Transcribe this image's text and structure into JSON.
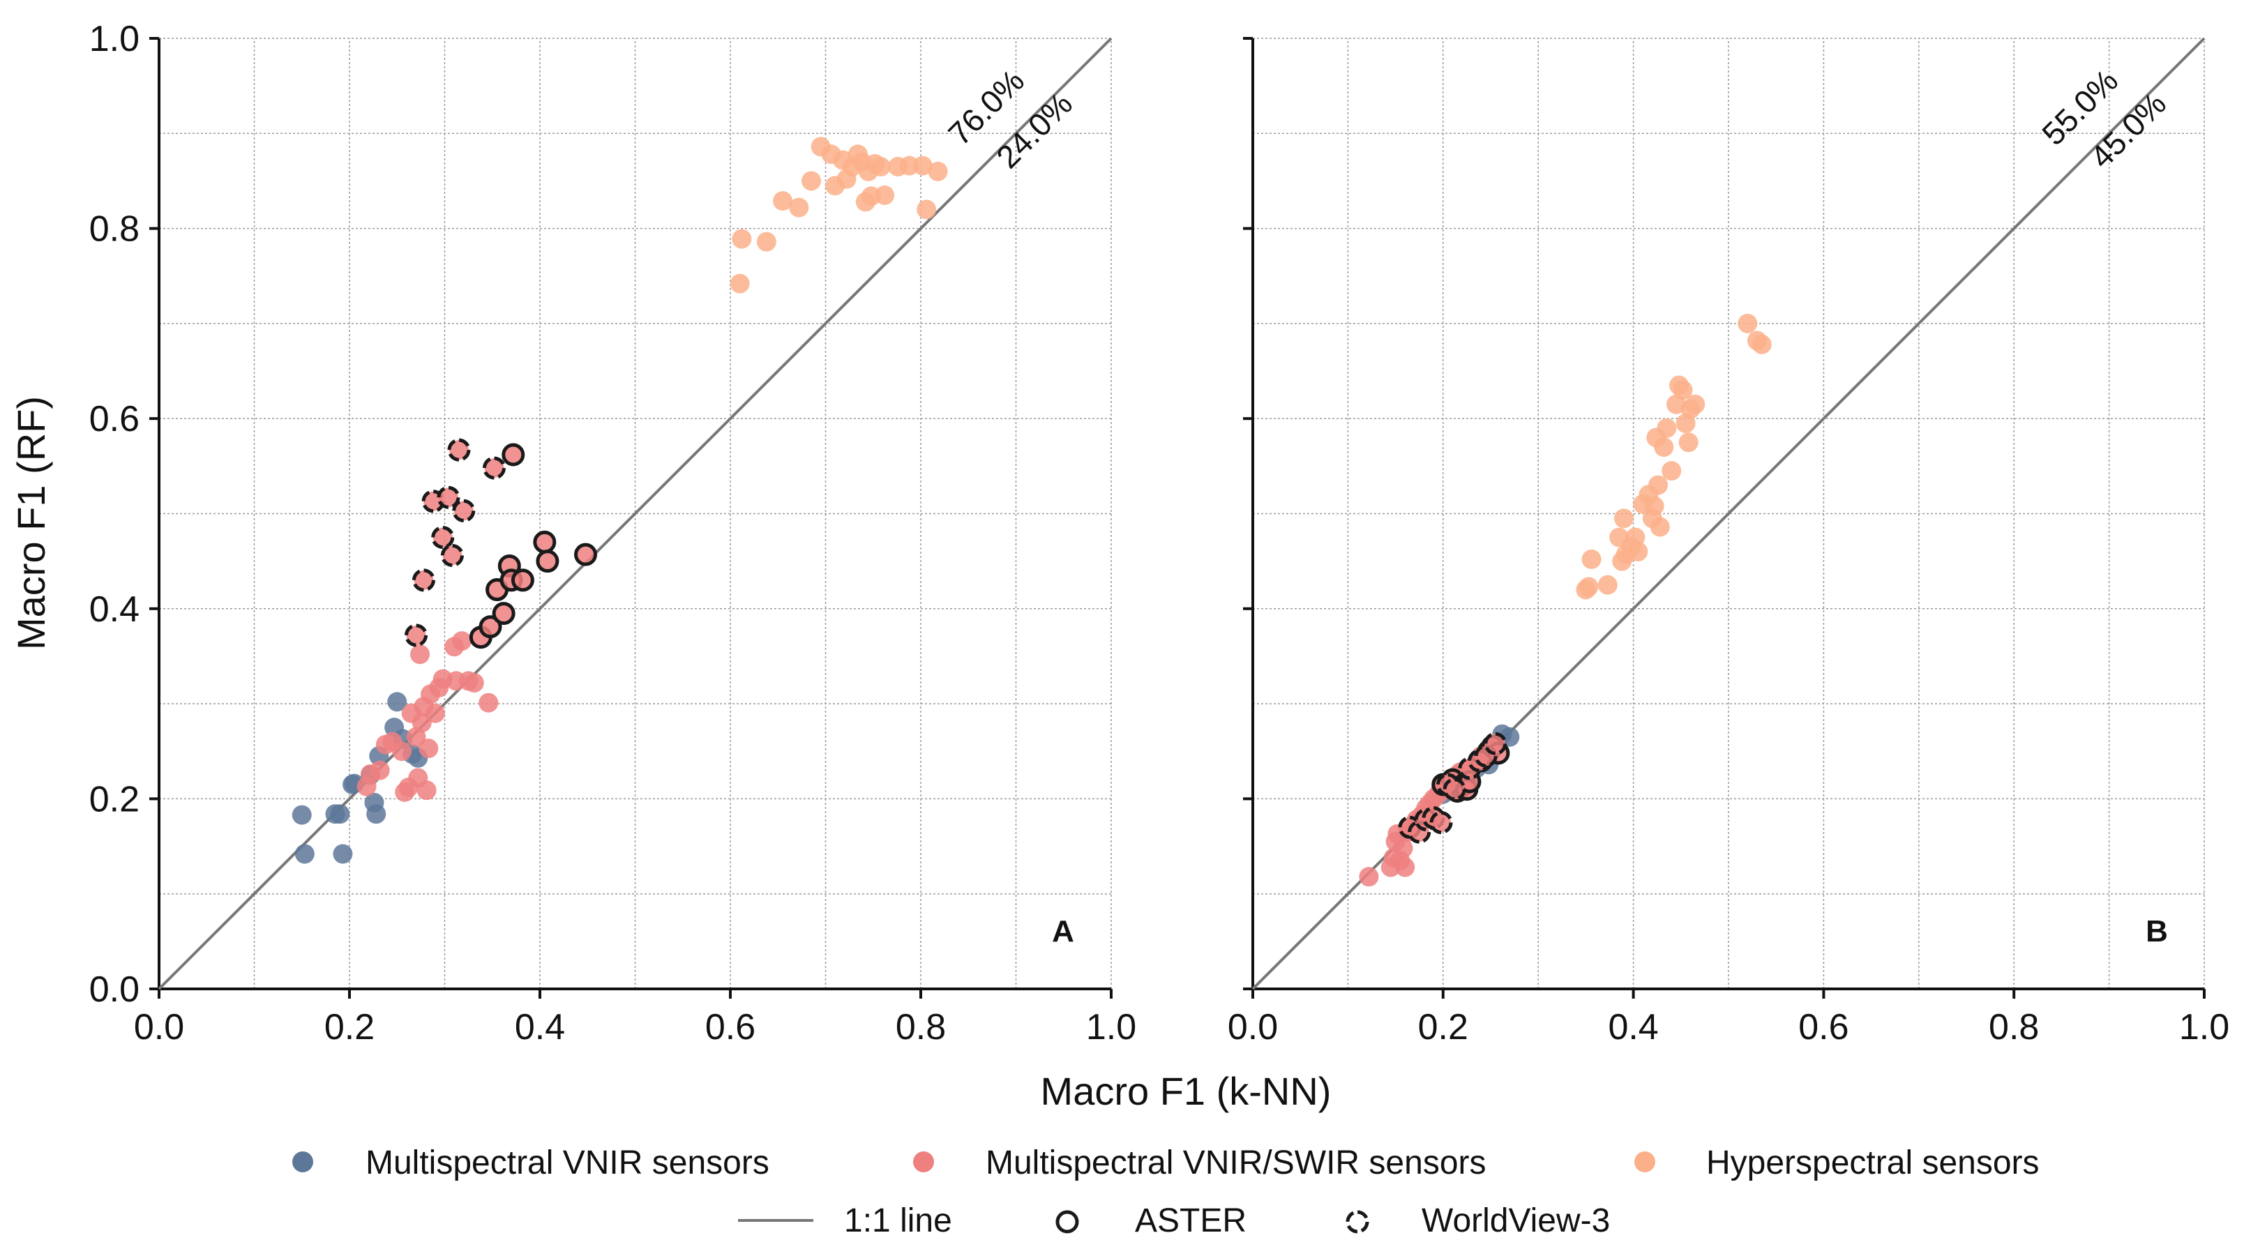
{
  "colors": {
    "vnir": "#5d7799",
    "vnir_swir": "#ef8080",
    "hyper": "#fbb089",
    "one_to_one": "#777777",
    "marker_edge": "#1a1a1a"
  },
  "legend": {
    "vnir_label": "Multispectral VNIR sensors",
    "vnir_swir_label": "Multispectral VNIR/SWIR sensors",
    "hyper_label": "Hyperspectral sensors",
    "line_label": "1:1 line",
    "aster_label": "ASTER",
    "wv3_label": "WorldView-3"
  },
  "chart_data": [
    {
      "type": "scatter",
      "panel": "A",
      "xlabel": "Macro F1 (k-NN)",
      "ylabel": "Macro F1 (RF)",
      "xlim": [
        0,
        1
      ],
      "ylim": [
        0,
        1
      ],
      "xticks": [
        "0.0",
        "0.2",
        "0.4",
        "0.6",
        "0.8",
        "1.0"
      ],
      "yticks": [
        "0.0",
        "0.2",
        "0.4",
        "0.6",
        "0.8",
        "1.0"
      ],
      "above_pct": "76.0%",
      "below_pct": "24.0%",
      "series": [
        {
          "name": "Multispectral VNIR sensors",
          "color_key": "vnir",
          "points": [
            [
              0.15,
              0.183
            ],
            [
              0.153,
              0.142
            ],
            [
              0.185,
              0.184
            ],
            [
              0.19,
              0.184
            ],
            [
              0.193,
              0.142
            ],
            [
              0.203,
              0.215
            ],
            [
              0.205,
              0.216
            ],
            [
              0.222,
              0.225
            ],
            [
              0.226,
              0.196
            ],
            [
              0.228,
              0.184
            ],
            [
              0.231,
              0.245
            ],
            [
              0.247,
              0.275
            ],
            [
              0.25,
              0.302
            ],
            [
              0.256,
              0.263
            ],
            [
              0.266,
              0.247
            ],
            [
              0.272,
              0.243
            ]
          ]
        },
        {
          "name": "Multispectral VNIR/SWIR sensors",
          "color_key": "vnir_swir",
          "points": [
            [
              0.218,
              0.213
            ],
            [
              0.222,
              0.226
            ],
            [
              0.232,
              0.23
            ],
            [
              0.238,
              0.257
            ],
            [
              0.245,
              0.26
            ],
            [
              0.255,
              0.25
            ],
            [
              0.258,
              0.207
            ],
            [
              0.262,
              0.212
            ],
            [
              0.265,
              0.29
            ],
            [
              0.27,
              0.265
            ],
            [
              0.272,
              0.222
            ],
            [
              0.274,
              0.352
            ],
            [
              0.276,
              0.28
            ],
            [
              0.278,
              0.297
            ],
            [
              0.281,
              0.209
            ],
            [
              0.283,
              0.253
            ],
            [
              0.285,
              0.31
            ],
            [
              0.29,
              0.29
            ],
            [
              0.294,
              0.317
            ],
            [
              0.298,
              0.326
            ],
            [
              0.31,
              0.36
            ],
            [
              0.312,
              0.324
            ],
            [
              0.318,
              0.366
            ],
            [
              0.325,
              0.324
            ],
            [
              0.331,
              0.322
            ],
            [
              0.346,
              0.301
            ]
          ]
        },
        {
          "name": "Hyperspectral sensors",
          "color_key": "hyper",
          "points": [
            [
              0.61,
              0.742
            ],
            [
              0.612,
              0.789
            ],
            [
              0.638,
              0.786
            ],
            [
              0.655,
              0.829
            ],
            [
              0.672,
              0.822
            ],
            [
              0.685,
              0.85
            ],
            [
              0.695,
              0.886
            ],
            [
              0.706,
              0.878
            ],
            [
              0.71,
              0.845
            ],
            [
              0.718,
              0.872
            ],
            [
              0.722,
              0.852
            ],
            [
              0.728,
              0.865
            ],
            [
              0.734,
              0.878
            ],
            [
              0.738,
              0.87
            ],
            [
              0.742,
              0.828
            ],
            [
              0.745,
              0.86
            ],
            [
              0.748,
              0.834
            ],
            [
              0.752,
              0.868
            ],
            [
              0.758,
              0.865
            ],
            [
              0.762,
              0.835
            ],
            [
              0.776,
              0.865
            ],
            [
              0.788,
              0.866
            ],
            [
              0.802,
              0.866
            ],
            [
              0.806,
              0.82
            ],
            [
              0.818,
              0.86
            ]
          ]
        }
      ],
      "aster": [
        [
          0.338,
          0.37
        ],
        [
          0.348,
          0.381
        ],
        [
          0.355,
          0.42
        ],
        [
          0.362,
          0.395
        ],
        [
          0.368,
          0.445
        ],
        [
          0.37,
          0.43
        ],
        [
          0.372,
          0.562
        ],
        [
          0.382,
          0.43
        ],
        [
          0.405,
          0.47
        ],
        [
          0.408,
          0.45
        ],
        [
          0.448,
          0.457
        ]
      ],
      "worldview3": [
        [
          0.27,
          0.372
        ],
        [
          0.278,
          0.43
        ],
        [
          0.288,
          0.513
        ],
        [
          0.298,
          0.475
        ],
        [
          0.304,
          0.517
        ],
        [
          0.308,
          0.456
        ],
        [
          0.315,
          0.567
        ],
        [
          0.32,
          0.503
        ],
        [
          0.352,
          0.548
        ]
      ]
    },
    {
      "type": "scatter",
      "panel": "B",
      "xlabel": "Macro F1 (k-NN)",
      "ylabel": "Macro F1 (RF)",
      "xlim": [
        0,
        1
      ],
      "ylim": [
        0,
        1
      ],
      "xticks": [
        "0.0",
        "0.2",
        "0.4",
        "0.6",
        "0.8",
        "1.0"
      ],
      "yticks": [
        "0.0",
        "0.2",
        "0.4",
        "0.6",
        "0.8",
        "1.0"
      ],
      "above_pct": "55.0%",
      "below_pct": "45.0%",
      "series": [
        {
          "name": "Multispectral VNIR sensors",
          "color_key": "vnir",
          "points": [
            [
              0.2,
              0.205
            ],
            [
              0.212,
              0.212
            ],
            [
              0.22,
              0.218
            ],
            [
              0.228,
              0.22
            ],
            [
              0.235,
              0.232
            ],
            [
              0.242,
              0.238
            ],
            [
              0.248,
              0.236
            ],
            [
              0.255,
              0.255
            ],
            [
              0.262,
              0.268
            ],
            [
              0.27,
              0.265
            ]
          ]
        },
        {
          "name": "Multispectral VNIR/SWIR sensors",
          "color_key": "vnir_swir",
          "points": [
            [
              0.122,
              0.118
            ],
            [
              0.145,
              0.128
            ],
            [
              0.148,
              0.138
            ],
            [
              0.15,
              0.155
            ],
            [
              0.152,
              0.163
            ],
            [
              0.155,
              0.135
            ],
            [
              0.158,
              0.148
            ],
            [
              0.16,
              0.128
            ],
            [
              0.163,
              0.165
            ],
            [
              0.168,
              0.172
            ],
            [
              0.172,
              0.178
            ],
            [
              0.178,
              0.183
            ],
            [
              0.182,
              0.19
            ],
            [
              0.186,
              0.195
            ],
            [
              0.19,
              0.2
            ],
            [
              0.195,
              0.205
            ],
            [
              0.198,
              0.212
            ],
            [
              0.205,
              0.21
            ],
            [
              0.21,
              0.218
            ],
            [
              0.215,
              0.225
            ],
            [
              0.218,
              0.228
            ],
            [
              0.222,
              0.222
            ],
            [
              0.228,
              0.232
            ],
            [
              0.235,
              0.238
            ],
            [
              0.24,
              0.245
            ]
          ]
        },
        {
          "name": "Hyperspectral sensors",
          "color_key": "hyper",
          "points": [
            [
              0.35,
              0.42
            ],
            [
              0.353,
              0.423
            ],
            [
              0.356,
              0.452
            ],
            [
              0.373,
              0.425
            ],
            [
              0.385,
              0.475
            ],
            [
              0.388,
              0.45
            ],
            [
              0.39,
              0.495
            ],
            [
              0.392,
              0.457
            ],
            [
              0.398,
              0.465
            ],
            [
              0.402,
              0.475
            ],
            [
              0.405,
              0.46
            ],
            [
              0.41,
              0.51
            ],
            [
              0.416,
              0.52
            ],
            [
              0.42,
              0.495
            ],
            [
              0.422,
              0.508
            ],
            [
              0.424,
              0.58
            ],
            [
              0.426,
              0.53
            ],
            [
              0.428,
              0.486
            ],
            [
              0.432,
              0.57
            ],
            [
              0.435,
              0.59
            ],
            [
              0.44,
              0.545
            ],
            [
              0.445,
              0.615
            ],
            [
              0.448,
              0.635
            ],
            [
              0.452,
              0.63
            ],
            [
              0.455,
              0.595
            ],
            [
              0.458,
              0.575
            ],
            [
              0.46,
              0.61
            ],
            [
              0.465,
              0.615
            ],
            [
              0.52,
              0.7
            ],
            [
              0.53,
              0.682
            ],
            [
              0.535,
              0.678
            ]
          ]
        }
      ],
      "aster": [
        [
          0.2,
          0.215
        ],
        [
          0.21,
          0.22
        ],
        [
          0.215,
          0.208
        ],
        [
          0.218,
          0.212
        ],
        [
          0.222,
          0.215
        ],
        [
          0.225,
          0.21
        ],
        [
          0.228,
          0.218
        ],
        [
          0.24,
          0.24
        ],
        [
          0.248,
          0.25
        ],
        [
          0.252,
          0.255
        ],
        [
          0.258,
          0.248
        ]
      ],
      "worldview3": [
        [
          0.165,
          0.17
        ],
        [
          0.175,
          0.165
        ],
        [
          0.182,
          0.178
        ],
        [
          0.19,
          0.18
        ],
        [
          0.198,
          0.175
        ],
        [
          0.205,
          0.215
        ],
        [
          0.212,
          0.21
        ],
        [
          0.228,
          0.232
        ],
        [
          0.238,
          0.24
        ],
        [
          0.245,
          0.245
        ],
        [
          0.255,
          0.258
        ]
      ]
    }
  ]
}
